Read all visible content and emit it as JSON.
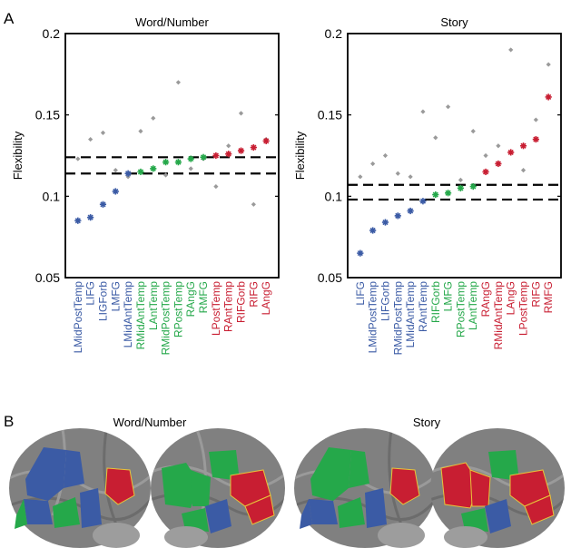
{
  "panel_labels": {
    "a": "A",
    "b": "B"
  },
  "colors": {
    "blue": "#3b5ba5",
    "green": "#25a84a",
    "red": "#c81e32",
    "gray": "#9a9a9a",
    "brain_bg": "#7d7d7d"
  },
  "chart_data": [
    {
      "type": "scatter",
      "title": "Word/Number",
      "ylabel": "Flexibility",
      "ylim": [
        0.05,
        0.2
      ],
      "yticks": [
        "0.05",
        "0.1",
        "0.15",
        "0.2"
      ],
      "categories": [
        "LMidPostTemp",
        "LIFG",
        "LIGForb",
        "LMFG",
        "LMidAntTemp",
        "RMidAntTemp",
        "LAntTemp",
        "RMidPostTemp",
        "RPostTemp",
        "RAngG",
        "RMFG",
        "LPostTemp",
        "RAntTemp",
        "RIFGorb",
        "RIFG",
        "LAngG"
      ],
      "category_colors": [
        "blue",
        "blue",
        "blue",
        "blue",
        "blue",
        "green",
        "green",
        "green",
        "green",
        "green",
        "green",
        "red",
        "red",
        "red",
        "red",
        "red"
      ],
      "values": [
        0.085,
        0.087,
        0.095,
        0.103,
        0.114,
        0.115,
        0.117,
        0.121,
        0.121,
        0.123,
        0.124,
        0.125,
        0.126,
        0.128,
        0.13,
        0.134
      ],
      "comparison_values": [
        0.123,
        0.135,
        0.139,
        0.116,
        0.112,
        0.14,
        0.148,
        0.113,
        0.17,
        0.117,
        0.123,
        0.106,
        0.131,
        0.151,
        0.095,
        0.135
      ],
      "reference_lines": [
        0.124,
        0.114
      ],
      "grid": false
    },
    {
      "type": "scatter",
      "title": "Story",
      "ylabel": "Flexibility",
      "ylim": [
        0.05,
        0.2
      ],
      "yticks": [
        "0.05",
        "0.1",
        "0.15",
        "0.2"
      ],
      "categories": [
        "LIFG",
        "LMidPostTemp",
        "LIFGorb",
        "RMidPostTemp",
        "LMidAntTemp",
        "RAntTemp",
        "RIFGorb",
        "LMFG",
        "RPostTemp",
        "LAntTemp",
        "RAngG",
        "RMidAntTemp",
        "LAngG",
        "LPostTemp",
        "RIFG",
        "RMFG"
      ],
      "category_colors": [
        "blue",
        "blue",
        "blue",
        "blue",
        "blue",
        "blue",
        "green",
        "green",
        "green",
        "green",
        "red",
        "red",
        "red",
        "red",
        "red",
        "red"
      ],
      "values": [
        0.065,
        0.079,
        0.084,
        0.088,
        0.091,
        0.097,
        0.101,
        0.102,
        0.105,
        0.106,
        0.115,
        0.12,
        0.127,
        0.131,
        0.135,
        0.161
      ],
      "comparison_values": [
        0.112,
        0.12,
        0.125,
        0.114,
        0.112,
        0.152,
        0.136,
        0.155,
        0.11,
        0.14,
        0.125,
        0.131,
        0.19,
        0.116,
        0.147,
        0.181
      ],
      "reference_lines": [
        0.107,
        0.098
      ],
      "grid": false
    }
  ],
  "brains": [
    {
      "title": "Word/Number"
    },
    {
      "title": "Story"
    }
  ]
}
